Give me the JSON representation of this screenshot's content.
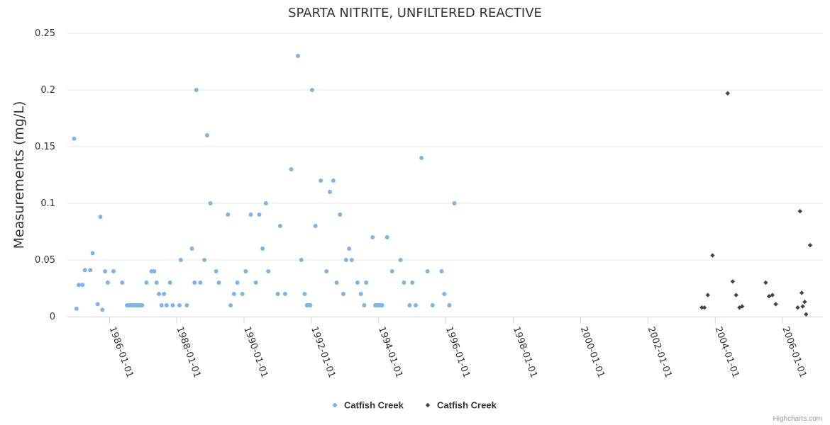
{
  "chart_data": {
    "type": "scatter",
    "title": "SPARTA NITRITE, UNFILTERED REACTIVE",
    "ylabel": "Measurements (mg/L)",
    "xlabel": "",
    "ylim": [
      0,
      0.25
    ],
    "yticks": [
      {
        "value": 0,
        "label": "0"
      },
      {
        "value": 0.05,
        "label": "0.05"
      },
      {
        "value": 0.1,
        "label": "0.1"
      },
      {
        "value": 0.15,
        "label": "0.15"
      },
      {
        "value": 0.2,
        "label": "0.2"
      },
      {
        "value": 0.25,
        "label": "0.25"
      }
    ],
    "xlim": [
      1984.75,
      2007.2
    ],
    "xticks": [
      {
        "value": 1986,
        "label": "1986-01-01"
      },
      {
        "value": 1988,
        "label": "1988-01-01"
      },
      {
        "value": 1990,
        "label": "1990-01-01"
      },
      {
        "value": 1992,
        "label": "1992-01-01"
      },
      {
        "value": 1994,
        "label": "1994-01-01"
      },
      {
        "value": 1996,
        "label": "1996-01-01"
      },
      {
        "value": 1998,
        "label": "1998-01-01"
      },
      {
        "value": 2000,
        "label": "2000-01-01"
      },
      {
        "value": 2002,
        "label": "2002-01-01"
      },
      {
        "value": 2004,
        "label": "2004-01-01"
      },
      {
        "value": 2006,
        "label": "2006-01-01"
      }
    ],
    "grid": true,
    "legend_position": "bottom-center",
    "series": [
      {
        "name": "Catfish Creek",
        "marker": "circle",
        "color": "#7cb5ec",
        "points": [
          [
            1984.95,
            0.157
          ],
          [
            1985.02,
            0.007
          ],
          [
            1985.09,
            0.028
          ],
          [
            1985.2,
            0.028
          ],
          [
            1985.27,
            0.041
          ],
          [
            1985.43,
            0.041
          ],
          [
            1985.5,
            0.056
          ],
          [
            1985.65,
            0.011
          ],
          [
            1985.73,
            0.088
          ],
          [
            1985.79,
            0.006
          ],
          [
            1985.87,
            0.04
          ],
          [
            1985.95,
            0.03
          ],
          [
            1986.12,
            0.04
          ],
          [
            1986.38,
            0.03
          ],
          [
            1986.52,
            0.01
          ],
          [
            1986.57,
            0.01
          ],
          [
            1986.62,
            0.01
          ],
          [
            1986.67,
            0.01
          ],
          [
            1986.72,
            0.01
          ],
          [
            1986.77,
            0.01
          ],
          [
            1986.82,
            0.01
          ],
          [
            1986.87,
            0.01
          ],
          [
            1986.92,
            0.01
          ],
          [
            1986.97,
            0.01
          ],
          [
            1987.1,
            0.03
          ],
          [
            1987.25,
            0.04
          ],
          [
            1987.33,
            0.04
          ],
          [
            1987.4,
            0.03
          ],
          [
            1987.47,
            0.02
          ],
          [
            1987.55,
            0.01
          ],
          [
            1987.62,
            0.02
          ],
          [
            1987.7,
            0.01
          ],
          [
            1987.8,
            0.03
          ],
          [
            1987.88,
            0.01
          ],
          [
            1988.08,
            0.01
          ],
          [
            1988.12,
            0.05
          ],
          [
            1988.3,
            0.01
          ],
          [
            1988.45,
            0.06
          ],
          [
            1988.53,
            0.03
          ],
          [
            1988.58,
            0.2
          ],
          [
            1988.7,
            0.03
          ],
          [
            1988.82,
            0.05
          ],
          [
            1988.9,
            0.16
          ],
          [
            1989.0,
            0.1
          ],
          [
            1989.17,
            0.04
          ],
          [
            1989.25,
            0.03
          ],
          [
            1989.52,
            0.09
          ],
          [
            1989.6,
            0.01
          ],
          [
            1989.7,
            0.02
          ],
          [
            1989.8,
            0.03
          ],
          [
            1989.95,
            0.02
          ],
          [
            1990.05,
            0.04
          ],
          [
            1990.2,
            0.09
          ],
          [
            1990.35,
            0.03
          ],
          [
            1990.45,
            0.09
          ],
          [
            1990.55,
            0.06
          ],
          [
            1990.65,
            0.1
          ],
          [
            1990.72,
            0.04
          ],
          [
            1991.0,
            0.02
          ],
          [
            1991.07,
            0.08
          ],
          [
            1991.22,
            0.02
          ],
          [
            1991.4,
            0.13
          ],
          [
            1991.6,
            0.23
          ],
          [
            1991.7,
            0.05
          ],
          [
            1991.8,
            0.02
          ],
          [
            1991.87,
            0.01
          ],
          [
            1991.92,
            0.01
          ],
          [
            1991.97,
            0.01
          ],
          [
            1992.02,
            0.2
          ],
          [
            1992.12,
            0.08
          ],
          [
            1992.28,
            0.12
          ],
          [
            1992.45,
            0.04
          ],
          [
            1992.55,
            0.11
          ],
          [
            1992.65,
            0.12
          ],
          [
            1992.75,
            0.03
          ],
          [
            1992.85,
            0.09
          ],
          [
            1992.95,
            0.02
          ],
          [
            1993.03,
            0.05
          ],
          [
            1993.12,
            0.06
          ],
          [
            1993.2,
            0.05
          ],
          [
            1993.37,
            0.03
          ],
          [
            1993.47,
            0.02
          ],
          [
            1993.57,
            0.01
          ],
          [
            1993.63,
            0.03
          ],
          [
            1993.82,
            0.07
          ],
          [
            1993.9,
            0.01
          ],
          [
            1993.95,
            0.01
          ],
          [
            1994.0,
            0.01
          ],
          [
            1994.05,
            0.01
          ],
          [
            1994.1,
            0.01
          ],
          [
            1994.25,
            0.07
          ],
          [
            1994.4,
            0.04
          ],
          [
            1994.65,
            0.05
          ],
          [
            1994.75,
            0.03
          ],
          [
            1994.92,
            0.01
          ],
          [
            1995.0,
            0.03
          ],
          [
            1995.1,
            0.01
          ],
          [
            1995.27,
            0.14
          ],
          [
            1995.45,
            0.04
          ],
          [
            1995.6,
            0.01
          ],
          [
            1995.87,
            0.04
          ],
          [
            1995.95,
            0.02
          ],
          [
            1996.1,
            0.01
          ],
          [
            1996.25,
            0.1
          ]
        ]
      },
      {
        "name": "Catfish Creek",
        "marker": "diamond",
        "color": "#434348",
        "points": [
          [
            2003.6,
            0.008
          ],
          [
            2003.68,
            0.008
          ],
          [
            2003.78,
            0.019
          ],
          [
            2003.92,
            0.054
          ],
          [
            2004.37,
            0.197
          ],
          [
            2004.52,
            0.031
          ],
          [
            2004.62,
            0.019
          ],
          [
            2004.72,
            0.008
          ],
          [
            2004.8,
            0.009
          ],
          [
            2005.5,
            0.03
          ],
          [
            2005.6,
            0.018
          ],
          [
            2005.7,
            0.019
          ],
          [
            2005.8,
            0.011
          ],
          [
            2006.45,
            0.008
          ],
          [
            2006.52,
            0.093
          ],
          [
            2006.57,
            0.021
          ],
          [
            2006.6,
            0.009
          ],
          [
            2006.66,
            0.013
          ],
          [
            2006.7,
            0.002
          ],
          [
            2006.82,
            0.063
          ]
        ]
      }
    ]
  },
  "credits": "Highcharts.com"
}
